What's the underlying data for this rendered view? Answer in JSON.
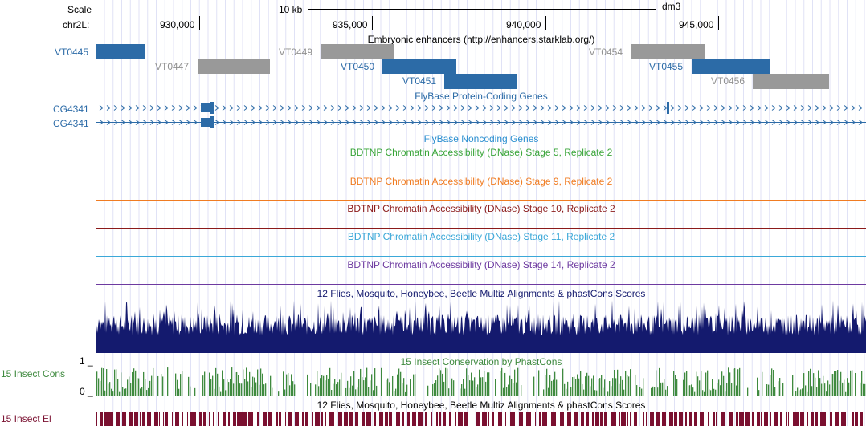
{
  "ruler": {
    "scale_label": "Scale",
    "scale_value": "10 kb",
    "assembly": "dm3",
    "chrom_label": "chr2L:",
    "ticks": [
      "930,000",
      "935,000",
      "940,000",
      "945,000"
    ]
  },
  "enhancers": {
    "title": "Embryonic enhancers (http://enhancers.starklab.org/)",
    "items": [
      {
        "name": "VT0445",
        "color": "#2c6ba7"
      },
      {
        "name": "VT0447",
        "color": "#999999"
      },
      {
        "name": "VT0449",
        "color": "#999999"
      },
      {
        "name": "VT0450",
        "color": "#2c6ba7"
      },
      {
        "name": "VT0451",
        "color": "#2c6ba7"
      },
      {
        "name": "VT0454",
        "color": "#999999"
      },
      {
        "name": "VT0455",
        "color": "#2c6ba7"
      },
      {
        "name": "VT0456",
        "color": "#999999"
      }
    ]
  },
  "genes": {
    "title": "FlyBase Protein-Coding Genes",
    "rows": [
      "CG4341",
      "CG4341"
    ],
    "color": "#2c6ba7"
  },
  "noncoding": {
    "title": "FlyBase Noncoding Genes",
    "color": "#2b8fd0"
  },
  "dnase_tracks": [
    {
      "title": "BDTNP Chromatin Accessibility (DNase) Stage 5, Replicate 2",
      "color": "#3aa53a"
    },
    {
      "title": "BDTNP Chromatin Accessibility (DNase) Stage 9, Replicate 2",
      "color": "#f07c22"
    },
    {
      "title": "BDTNP Chromatin Accessibility (DNase) Stage 10, Replicate 2",
      "color": "#8b1a1a"
    },
    {
      "title": "BDTNP Chromatin Accessibility (DNase) Stage 11, Replicate 2",
      "color": "#3ba8d8"
    },
    {
      "title": "BDTNP Chromatin Accessibility (DNase) Stage 14, Replicate 2",
      "color": "#6d3aa0"
    }
  ],
  "multiz": {
    "title": "12 Flies, Mosquito, Honeybee, Beetle Multiz Alignments & phastCons Scores",
    "color": "#141a6e"
  },
  "phastcons": {
    "title": "15 Insect Conservation by PhastCons",
    "label": "15 Insect Cons",
    "ymax": "1 _",
    "ymin": "0 _",
    "color": "#3f8a3f"
  },
  "elements": {
    "title": "12 Flies, Mosquito, Honeybee, Beetle Multiz Alignments & phastCons Scores",
    "label": "15 Insect El",
    "color": "#7a1030"
  }
}
